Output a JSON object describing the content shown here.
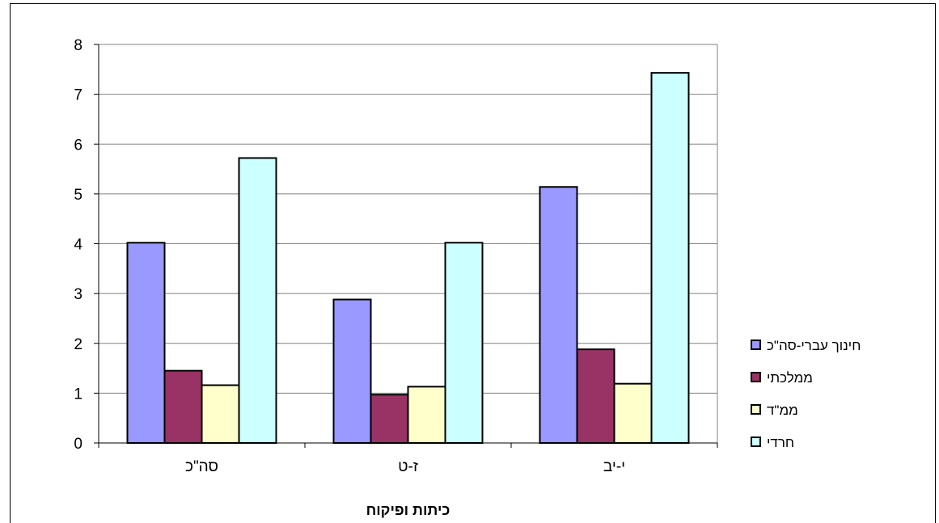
{
  "chart_data": {
    "type": "bar",
    "categories": [
      "סה\"כ",
      "ז-ט",
      "י-יב"
    ],
    "series": [
      {
        "name": "חינוך עברי-סה\"כ",
        "color": "#9999ff",
        "values": [
          4.02,
          2.88,
          5.14
        ]
      },
      {
        "name": "ממלכתי",
        "color": "#993366",
        "values": [
          1.45,
          0.97,
          1.88
        ]
      },
      {
        "name": "ממ\"ד",
        "color": "#ffffcc",
        "values": [
          1.16,
          1.13,
          1.19
        ]
      },
      {
        "name": "חרדי",
        "color": "#ccffff",
        "values": [
          5.72,
          4.02,
          7.43
        ]
      }
    ],
    "ylim": [
      0,
      8
    ],
    "yticks": [
      "0",
      "1",
      "2",
      "3",
      "4",
      "5",
      "6",
      "7",
      "8"
    ],
    "xlabel": "כיתות ופיקוח",
    "ylabel": "",
    "title": "",
    "grid": "horizontal",
    "legend_position": "right"
  }
}
